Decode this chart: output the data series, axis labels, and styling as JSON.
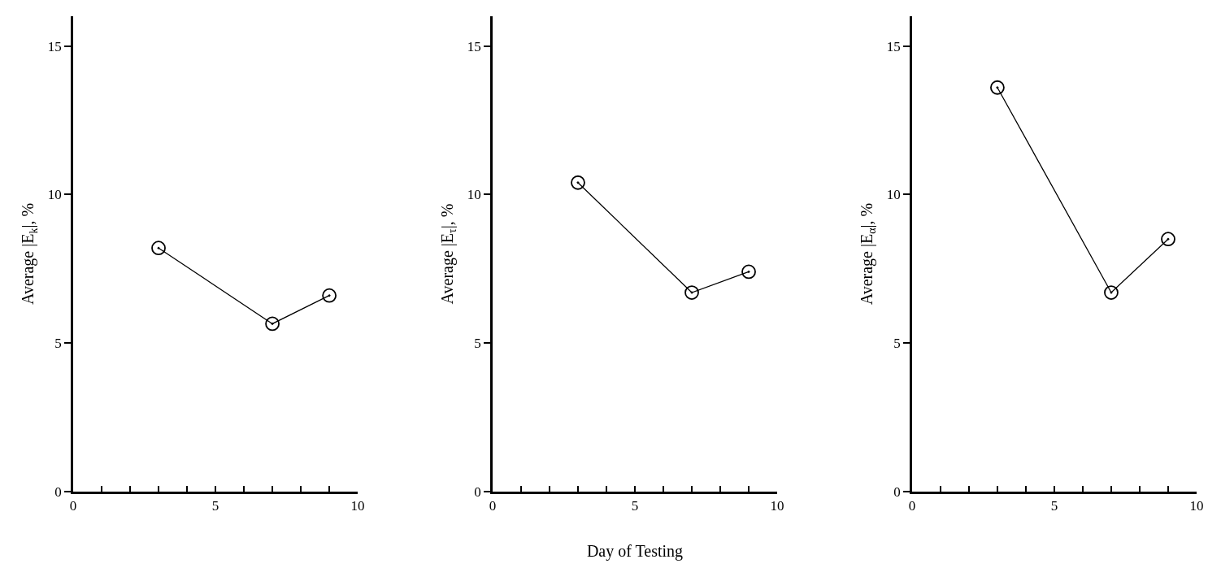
{
  "chart_data": [
    {
      "type": "line",
      "ylabel": "Average |E$_{k}$|, %",
      "x": [
        3,
        7,
        9
      ],
      "series": [
        {
          "color": "#000000",
          "values": [
            8.2,
            5.65,
            6.6
          ]
        }
      ],
      "xlim": [
        0,
        10
      ],
      "ylim": [
        0,
        16
      ],
      "xticks": [
        0,
        {
          "value": 1,
          "label": null
        },
        {
          "value": 2,
          "label": null
        },
        {
          "value": 3,
          "label": null
        },
        {
          "value": 4,
          "label": null
        },
        5,
        {
          "value": 6,
          "label": null
        },
        {
          "value": 7,
          "label": null
        },
        {
          "value": 8,
          "label": null
        },
        {
          "value": 9,
          "label": null
        },
        10
      ],
      "yticks": [
        0,
        5,
        10,
        15
      ],
      "marker": "circle",
      "line_style": "solid"
    },
    {
      "type": "line",
      "ylabel": "Average |E$_{τ}$|, %",
      "xlabel": "Day of Testing",
      "x": [
        3,
        7,
        9
      ],
      "series": [
        {
          "color": "#000000",
          "values": [
            10.4,
            6.7,
            7.4
          ]
        }
      ],
      "xlim": [
        0,
        10
      ],
      "ylim": [
        0,
        16
      ],
      "xticks": [
        0,
        {
          "value": 1,
          "label": null
        },
        {
          "value": 2,
          "label": null
        },
        {
          "value": 3,
          "label": null
        },
        {
          "value": 4,
          "label": null
        },
        5,
        {
          "value": 6,
          "label": null
        },
        {
          "value": 7,
          "label": null
        },
        {
          "value": 8,
          "label": null
        },
        {
          "value": 9,
          "label": null
        },
        10
      ],
      "yticks": [
        0,
        5,
        10,
        15
      ],
      "marker": "circle",
      "line_style": "solid"
    },
    {
      "type": "line",
      "ylabel": "Average |E$_{α}$|, %",
      "x": [
        3,
        7,
        9
      ],
      "series": [
        {
          "color": "#000000",
          "values": [
            13.6,
            6.7,
            8.5
          ]
        }
      ],
      "xlim": [
        0,
        10
      ],
      "ylim": [
        0,
        16
      ],
      "xticks": [
        0,
        {
          "value": 1,
          "label": null
        },
        {
          "value": 2,
          "label": null
        },
        {
          "value": 3,
          "label": null
        },
        {
          "value": 4,
          "label": null
        },
        5,
        {
          "value": 6,
          "label": null
        },
        {
          "value": 7,
          "label": null
        },
        {
          "value": 8,
          "label": null
        },
        {
          "value": 9,
          "label": null
        },
        10
      ],
      "yticks": [
        0,
        5,
        10,
        15
      ],
      "marker": "circle",
      "line_style": "solid"
    }
  ]
}
